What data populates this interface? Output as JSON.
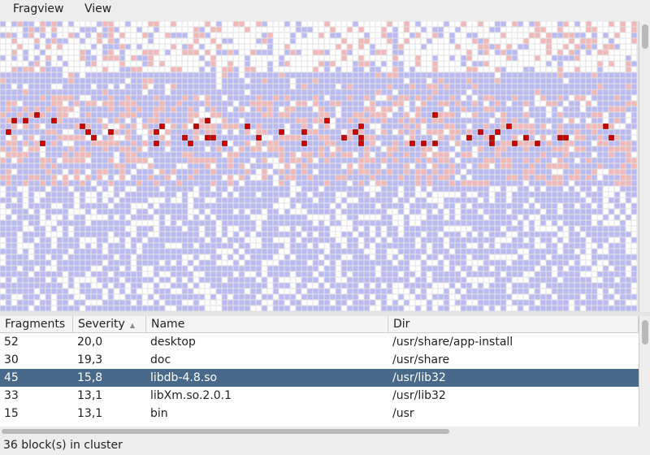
{
  "menu": [
    "Fragview",
    "View"
  ],
  "table": {
    "columns": [
      "Fragments",
      "Severity",
      "Name",
      "Dir"
    ],
    "rows": [
      [
        "52",
        "20,0",
        "desktop",
        "/usr/share/app-install"
      ],
      [
        "30",
        "19,3",
        "doc",
        "/usr/share"
      ],
      [
        "45",
        "15,8",
        "libdb-4.8.so",
        "/usr/lib32"
      ],
      [
        "33",
        "13,1",
        "libXm.so.2.0.1",
        "/usr/lib32"
      ],
      [
        "15",
        "13,1",
        "bin",
        "/usr"
      ]
    ],
    "selected_row": 2
  },
  "status": "36 block(s) in cluster"
}
